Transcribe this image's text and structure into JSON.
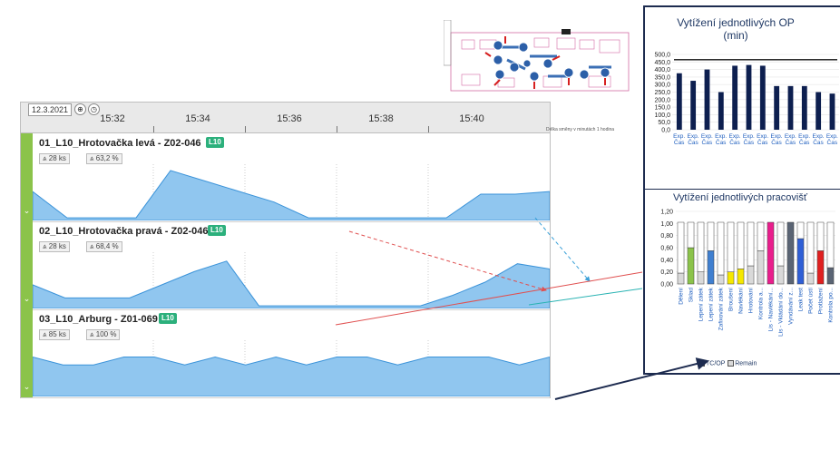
{
  "timeline": {
    "date": "12.3.2021",
    "icon_a": "settings-icon",
    "icon_b": "clock-icon",
    "ticks": [
      "15:32",
      "15:34",
      "15:36",
      "15:38",
      "15:40"
    ],
    "note": "Délka směny v minutách 1 hodina",
    "lanes": [
      {
        "title": "01_L10_Hrotovačka levá - Z02-046",
        "badge": "L10",
        "pieces": "28 ks",
        "percent": "63,2 %"
      },
      {
        "title": "02_L10_Hrotovačka pravá - Z02-046",
        "badge": "L10",
        "pieces": "28 ks",
        "percent": "68,4 %"
      },
      {
        "title": "03_L10_Arburg - Z01-069",
        "badge": "L10",
        "pieces": "85 ks",
        "percent": "100 %"
      }
    ]
  },
  "chart_data": [
    {
      "type": "area",
      "name": "lane-1",
      "values": [
        0.55,
        0.05,
        0.05,
        0.05,
        0.95,
        0.75,
        0.55,
        0.35,
        0.05,
        0.05,
        0.05,
        0.05,
        0.05,
        0.5,
        0.5,
        0.55
      ]
    },
    {
      "type": "area",
      "name": "lane-2",
      "values": [
        0.45,
        0.2,
        0.2,
        0.2,
        0.45,
        0.7,
        0.9,
        0.05,
        0.05,
        0.05,
        0.05,
        0.05,
        0.05,
        0.25,
        0.5,
        0.85,
        0.75
      ]
    },
    {
      "type": "area",
      "name": "lane-3",
      "values": [
        0.75,
        0.6,
        0.6,
        0.75,
        0.75,
        0.6,
        0.75,
        0.6,
        0.75,
        0.6,
        0.75,
        0.75,
        0.6,
        0.75,
        0.75,
        0.75,
        0.6,
        0.75
      ]
    },
    {
      "type": "bar",
      "title": "Vytížení jednotlivých OP",
      "subtitle": "(min)",
      "categories": [
        "Exp. Čas",
        "Exp. Čas",
        "Exp. Čas",
        "Exp. Čas",
        "Exp. Čas",
        "Exp. Čas",
        "Exp. Čas",
        "Exp. Čas",
        "Exp. Čas",
        "Exp. Čas",
        "Exp. Čas",
        "Exp. Čas"
      ],
      "values": [
        375,
        325,
        400,
        250,
        425,
        430,
        425,
        290,
        290,
        290,
        250,
        240
      ],
      "ylim": [
        0,
        500
      ],
      "yticks": [
        "500,0",
        "450,0",
        "400,0",
        "350,0",
        "300,0",
        "250,0",
        "200,0",
        "150,0",
        "100,0",
        "50,0",
        "0,0"
      ],
      "reference_line": 465,
      "bar_color": "#0d1f4f"
    },
    {
      "type": "bar",
      "title": "Vytížení jednotlivých pracovišť",
      "categories": [
        "Dělení",
        "Sklad",
        "Lepení zátek",
        "Lepení zátek",
        "Zafixování zátek",
        "Broušení",
        "Navlékání",
        "Hrotování",
        "Kontrola a...",
        "Lis - Navlékání...",
        "Lis - Vkládání do...",
        "Vyndávání z...",
        "Leak test",
        "Počet ústí",
        "Protlažení",
        "Kontrola po..."
      ],
      "series": [
        {
          "name": "TC/OP",
          "values": [
            0.18,
            0.6,
            0.2,
            0.55,
            0.15,
            0.2,
            0.25,
            0.3,
            0.55,
            1.02,
            0.3,
            1.02,
            0.75,
            0.18,
            0.55,
            0.27
          ],
          "colors": [
            "#d9d9d9",
            "#8bc34a",
            "#d9d9d9",
            "#3f7fd0",
            "#d9d9d9",
            "#f5e800",
            "#f5e800",
            "#d9d9d9",
            "#d9d9d9",
            "#e91e8c",
            "#d9d9d9",
            "#5a6474",
            "#2f5fd6",
            "#d9d9d9",
            "#e02020",
            "#5a6474"
          ]
        },
        {
          "name": "Remain",
          "values": [
            0.84,
            0.42,
            0.82,
            0.47,
            0.87,
            0.82,
            0.77,
            0.72,
            0.47,
            0.0,
            0.72,
            0.0,
            0.27,
            0.84,
            0.47,
            0.75
          ]
        }
      ],
      "ylim": [
        0,
        1.2
      ],
      "yticks": [
        "1,20",
        "1,00",
        "0,80",
        "0,60",
        "0,40",
        "0,20",
        "0,00"
      ],
      "legend": [
        "TC/OP",
        "Remain"
      ]
    }
  ]
}
